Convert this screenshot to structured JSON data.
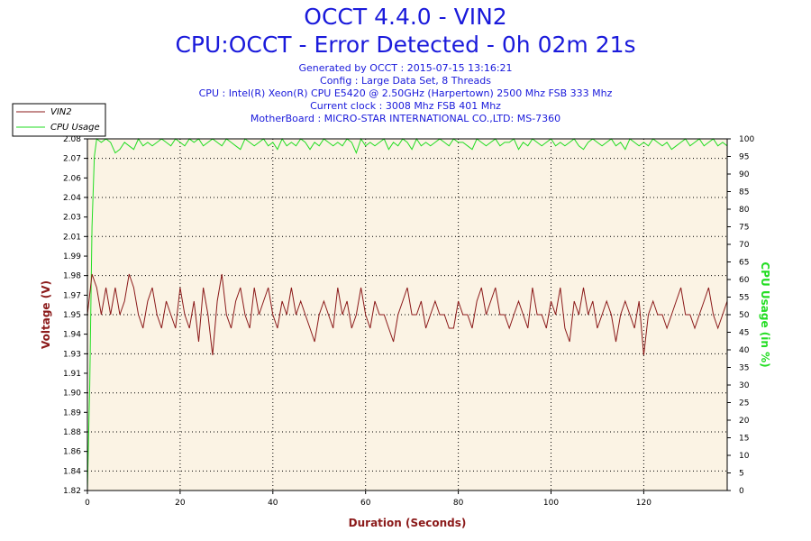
{
  "header": {
    "title": "OCCT 4.4.0 - VIN2",
    "subtitle": "CPU:OCCT - Error Detected - 0h 02m 21s",
    "info": [
      "Generated by OCCT : 2015-07-15 13:16:21",
      "Config : Large Data Set, 8 Threads",
      "CPU : Intel(R) Xeon(R) CPU E5420 @ 2.50GHz (Harpertown) 2500 Mhz FSB 333 Mhz",
      "Current clock : 3008 Mhz FSB 401 Mhz",
      "MotherBoard : MICRO-STAR INTERNATIONAL CO.,LTD: MS-7360"
    ]
  },
  "colors": {
    "vin2": "#8b1a1a",
    "cpu_usage": "#22dd22",
    "plot_bg": "#fbf3e4",
    "title": "#1a1adb"
  },
  "chart_data": {
    "type": "line",
    "xlabel": "Duration (Seconds)",
    "ylabel_left": "Voltage (V)",
    "ylabel_right": "CPU Usage (in %)",
    "xlim": [
      0,
      138
    ],
    "ylim_left": [
      1.82,
      2.08
    ],
    "ylim_right": [
      0,
      100
    ],
    "x_ticks": [
      "0",
      "20",
      "40",
      "60",
      "80",
      "100",
      "120"
    ],
    "x_tick_values": [
      0,
      20,
      40,
      60,
      80,
      100,
      120
    ],
    "y_left_ticks": [
      "1.82",
      "1.84",
      "1.86",
      "1.88",
      "1.89",
      "1.90",
      "1.91",
      "1.93",
      "1.94",
      "1.95",
      "1.97",
      "1.98",
      "1.99",
      "2.01",
      "2.03",
      "2.04",
      "2.06",
      "2.07",
      "2.08"
    ],
    "y_left_tick_values": [
      1.82,
      1.8344,
      1.8489,
      1.8633,
      1.8778,
      1.8922,
      1.9067,
      1.9211,
      1.9356,
      1.95,
      1.9644,
      1.9789,
      1.9933,
      2.0078,
      2.0222,
      2.0367,
      2.0511,
      2.0656,
      2.08
    ],
    "y_right_ticks": [
      "0",
      "5",
      "10",
      "15",
      "20",
      "25",
      "30",
      "35",
      "40",
      "45",
      "50",
      "55",
      "60",
      "65",
      "70",
      "75",
      "80",
      "85",
      "90",
      "95",
      "100"
    ],
    "y_right_tick_values": [
      0,
      5,
      10,
      15,
      20,
      25,
      30,
      35,
      40,
      45,
      50,
      55,
      60,
      65,
      70,
      75,
      80,
      85,
      90,
      95,
      100
    ],
    "grid": true,
    "legend_position": "top-left",
    "series": [
      {
        "name": "VIN2",
        "axis": "left",
        "x": [
          0,
          1,
          2,
          3,
          4,
          5,
          6,
          7,
          8,
          9,
          10,
          11,
          12,
          13,
          14,
          15,
          16,
          17,
          18,
          19,
          20,
          21,
          22,
          23,
          24,
          25,
          26,
          27,
          28,
          29,
          30,
          31,
          32,
          33,
          34,
          35,
          36,
          37,
          38,
          39,
          40,
          41,
          42,
          43,
          44,
          45,
          46,
          47,
          48,
          49,
          50,
          51,
          52,
          53,
          54,
          55,
          56,
          57,
          58,
          59,
          60,
          61,
          62,
          63,
          64,
          65,
          66,
          67,
          68,
          69,
          70,
          71,
          72,
          73,
          74,
          75,
          76,
          77,
          78,
          79,
          80,
          81,
          82,
          83,
          84,
          85,
          86,
          87,
          88,
          89,
          90,
          91,
          92,
          93,
          94,
          95,
          96,
          97,
          98,
          99,
          100,
          101,
          102,
          103,
          104,
          105,
          106,
          107,
          108,
          109,
          110,
          111,
          112,
          113,
          114,
          115,
          116,
          117,
          118,
          119,
          120,
          121,
          122,
          123,
          124,
          125,
          126,
          127,
          128,
          129,
          130,
          131,
          132,
          133,
          134,
          135,
          136,
          137,
          138
        ],
        "values": [
          1.95,
          1.98,
          1.97,
          1.95,
          1.97,
          1.95,
          1.97,
          1.95,
          1.96,
          1.98,
          1.97,
          1.95,
          1.94,
          1.96,
          1.97,
          1.95,
          1.94,
          1.96,
          1.95,
          1.94,
          1.97,
          1.95,
          1.94,
          1.96,
          1.93,
          1.97,
          1.95,
          1.92,
          1.96,
          1.98,
          1.95,
          1.94,
          1.96,
          1.97,
          1.95,
          1.94,
          1.97,
          1.95,
          1.96,
          1.97,
          1.95,
          1.94,
          1.96,
          1.95,
          1.97,
          1.95,
          1.96,
          1.95,
          1.94,
          1.93,
          1.95,
          1.96,
          1.95,
          1.94,
          1.97,
          1.95,
          1.96,
          1.94,
          1.95,
          1.97,
          1.95,
          1.94,
          1.96,
          1.95,
          1.95,
          1.94,
          1.93,
          1.95,
          1.96,
          1.97,
          1.95,
          1.95,
          1.96,
          1.94,
          1.95,
          1.96,
          1.95,
          1.95,
          1.94,
          1.94,
          1.96,
          1.95,
          1.95,
          1.94,
          1.96,
          1.97,
          1.95,
          1.96,
          1.97,
          1.95,
          1.95,
          1.94,
          1.95,
          1.96,
          1.95,
          1.94,
          1.97,
          1.95,
          1.95,
          1.94,
          1.96,
          1.95,
          1.97,
          1.94,
          1.93,
          1.96,
          1.95,
          1.97,
          1.95,
          1.96,
          1.94,
          1.95,
          1.96,
          1.95,
          1.93,
          1.95,
          1.96,
          1.95,
          1.94,
          1.96,
          1.92,
          1.95,
          1.96,
          1.95,
          1.95,
          1.94,
          1.95,
          1.96,
          1.97,
          1.95,
          1.95,
          1.94,
          1.95,
          1.96,
          1.97,
          1.95,
          1.94,
          1.95,
          1.96
        ]
      },
      {
        "name": "CPU Usage",
        "axis": "right",
        "x": [
          0,
          0.5,
          1,
          1.5,
          2,
          3,
          4,
          5,
          6,
          7,
          8,
          9,
          10,
          11,
          12,
          13,
          14,
          15,
          16,
          17,
          18,
          19,
          20,
          21,
          22,
          23,
          24,
          25,
          26,
          27,
          28,
          29,
          30,
          31,
          32,
          33,
          34,
          35,
          36,
          37,
          38,
          39,
          40,
          41,
          42,
          43,
          44,
          45,
          46,
          47,
          48,
          49,
          50,
          51,
          52,
          53,
          54,
          55,
          56,
          57,
          58,
          59,
          60,
          61,
          62,
          63,
          64,
          65,
          66,
          67,
          68,
          69,
          70,
          71,
          72,
          73,
          74,
          75,
          76,
          77,
          78,
          79,
          80,
          81,
          82,
          83,
          84,
          85,
          86,
          87,
          88,
          89,
          90,
          91,
          92,
          93,
          94,
          95,
          96,
          97,
          98,
          99,
          100,
          101,
          102,
          103,
          104,
          105,
          106,
          107,
          108,
          109,
          110,
          111,
          112,
          113,
          114,
          115,
          116,
          117,
          118,
          119,
          120,
          121,
          122,
          123,
          124,
          125,
          126,
          127,
          128,
          129,
          130,
          131,
          132,
          133,
          134,
          135,
          136,
          137,
          138
        ],
        "values": [
          0,
          30,
          75,
          95,
          100,
          99,
          100,
          99,
          96,
          97,
          99,
          98,
          97,
          100,
          98,
          99,
          98,
          99,
          100,
          99,
          98,
          100,
          99,
          98,
          100,
          99,
          100,
          98,
          99,
          100,
          99,
          98,
          100,
          99,
          98,
          97,
          100,
          99,
          98,
          99,
          100,
          98,
          99,
          97,
          100,
          98,
          99,
          98,
          100,
          99,
          97,
          99,
          98,
          100,
          99,
          98,
          99,
          98,
          100,
          99,
          96,
          100,
          98,
          99,
          98,
          99,
          100,
          97,
          99,
          98,
          100,
          99,
          97,
          100,
          98,
          99,
          98,
          99,
          100,
          99,
          98,
          100,
          99,
          99,
          98,
          97,
          100,
          99,
          98,
          99,
          100,
          98,
          99,
          99,
          100,
          97,
          99,
          98,
          100,
          99,
          98,
          99,
          100,
          98,
          99,
          98,
          99,
          100,
          98,
          97,
          99,
          100,
          99,
          98,
          99,
          100,
          98,
          99,
          97,
          100,
          99,
          98,
          99,
          98,
          100,
          99,
          98,
          99,
          97,
          98,
          99,
          100,
          98,
          99,
          100,
          98,
          99,
          100,
          98,
          99,
          98
        ]
      }
    ]
  }
}
